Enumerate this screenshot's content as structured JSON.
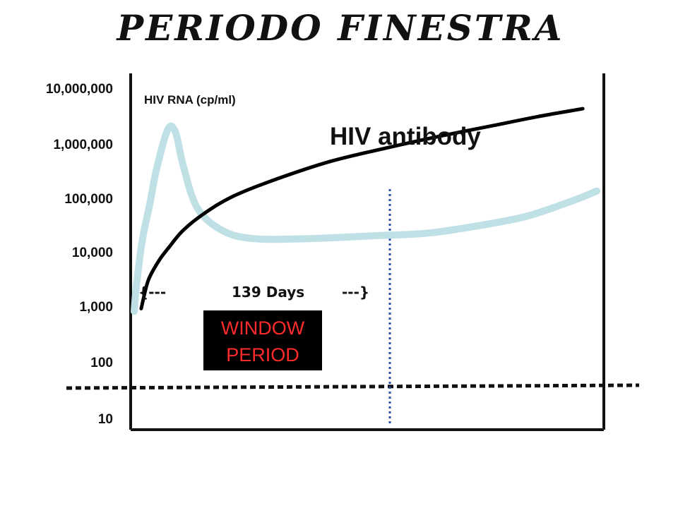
{
  "title": "PERIODO FINESTRA",
  "chart_data": {
    "type": "line",
    "y_scale": "log",
    "y_ticks": [
      "10,000,000",
      "1,000,000",
      "100,000",
      "10,000",
      "1,000",
      "100",
      "10"
    ],
    "series": [
      {
        "name": "HIV RNA (cp/ml)",
        "color": "#bfe0e4",
        "points": [
          [
            0,
            3
          ],
          [
            0.35,
            3.5
          ],
          [
            1.2,
            4.3
          ],
          [
            2.2,
            4.9
          ],
          [
            3.2,
            5.55
          ],
          [
            4.8,
            6.25
          ],
          [
            5.9,
            6.2
          ],
          [
            7,
            5.6
          ],
          [
            9,
            4.85
          ],
          [
            12.5,
            4.45
          ],
          [
            17,
            4.3
          ],
          [
            25,
            4.3
          ],
          [
            34,
            4.35
          ],
          [
            42,
            4.4
          ],
          [
            50,
            4.55
          ],
          [
            56,
            4.7
          ],
          [
            62,
            4.95
          ],
          [
            66,
            5.15
          ]
        ]
      },
      {
        "name": "HIV antibody",
        "color": "#000000",
        "points": [
          [
            1,
            3.05
          ],
          [
            2,
            3.55
          ],
          [
            3.5,
            3.9
          ],
          [
            5,
            4.15
          ],
          [
            7,
            4.45
          ],
          [
            10,
            4.75
          ],
          [
            14,
            5.05
          ],
          [
            20,
            5.35
          ],
          [
            28,
            5.68
          ],
          [
            36,
            5.92
          ],
          [
            44,
            6.14
          ],
          [
            52,
            6.34
          ],
          [
            58,
            6.49
          ],
          [
            64,
            6.62
          ]
        ]
      }
    ],
    "annotations": {
      "window_brace_left": "{---",
      "window_days": "139 Days",
      "window_brace_right": "---}",
      "window_box": [
        "WINDOW",
        "PERIOD"
      ]
    },
    "grid": false
  }
}
